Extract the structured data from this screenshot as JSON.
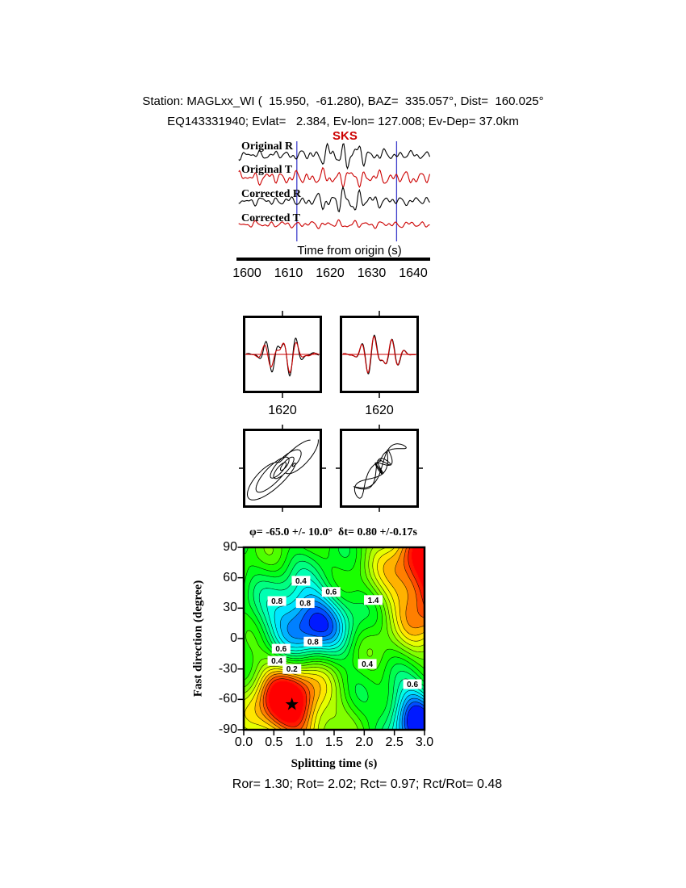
{
  "header": {
    "line1": "Station: MAGLxx_WI (  15.950,  -61.280), BAZ=  335.057°, Dist=  160.025°",
    "line2": "EQ143331940; Evlat=   2.384, Ev-lon= 127.008; Ev-Dep= 37.0km"
  },
  "chart_data": [
    {
      "id": "waveform-panel",
      "type": "line",
      "xlabel": "Time from origin (s)",
      "xlim": [
        1598,
        1644
      ],
      "xticks": [
        1600,
        1610,
        1620,
        1630,
        1640
      ],
      "phase_label": "SKS",
      "phase_time": 1624,
      "window_s": [
        1612,
        1636
      ],
      "window_color": "#4040cc",
      "traces": [
        {
          "name": "Original R",
          "color": "#000000",
          "base_amp": 4.5,
          "burst_amp": 11
        },
        {
          "name": "Original T",
          "color": "#cc0000",
          "base_amp": 7,
          "burst_amp": 3
        },
        {
          "name": "Corrected R",
          "color": "#000000",
          "base_amp": 4.5,
          "burst_amp": 10
        },
        {
          "name": "Corrected T",
          "color": "#cc0000",
          "base_amp": 3.5,
          "burst_amp": 1
        }
      ]
    },
    {
      "id": "window-seismograms",
      "type": "line",
      "panels": [
        {
          "label": "1620",
          "series": [
            "R",
            "T"
          ],
          "colors": [
            "#000000",
            "#cc0000"
          ],
          "match": 0.75
        },
        {
          "label": "1620",
          "series": [
            "R",
            "T"
          ],
          "colors": [
            "#000000",
            "#cc0000"
          ],
          "match": 0.95
        }
      ]
    },
    {
      "id": "particle-motion",
      "type": "scatter",
      "panels": [
        {
          "name": "original",
          "shape": "elliptical"
        },
        {
          "name": "corrected",
          "shape": "linear-diagonal"
        }
      ]
    },
    {
      "id": "error-surface",
      "type": "heatmap",
      "title": "φ= -65.0 +/- 10.0°  δt= 0.80 +/-0.17s",
      "xlabel": "Splitting time (s)",
      "ylabel": "Fast direction (degree)",
      "xlim": [
        0,
        3
      ],
      "ylim": [
        -90,
        90
      ],
      "xticks": [
        "0.0",
        "0.5",
        "1.0",
        "1.5",
        "2.0",
        "2.5",
        "3.0"
      ],
      "yticks": [
        "90",
        "60",
        "30",
        "0",
        "-30",
        "-60",
        "-90"
      ],
      "best_fit": {
        "fast_direction_deg": -65.0,
        "fast_direction_err_deg": 10.0,
        "delay_s": 0.8,
        "delay_err_s": 0.17
      },
      "star": {
        "x": 0.8,
        "y": -65
      },
      "base_level": 0.52,
      "field_blobs": [
        {
          "x": 0.75,
          "y": -63,
          "sx": 0.45,
          "sy": 30,
          "v": 0.6
        },
        {
          "x": 1.05,
          "y": 16,
          "sx": 0.48,
          "sy": 27,
          "v": -0.52
        },
        {
          "x": 2.85,
          "y": -80,
          "sx": 0.32,
          "sy": 24,
          "v": -0.55
        },
        {
          "x": 3.3,
          "y": 45,
          "sx": 0.6,
          "sy": 38,
          "v": 0.5
        },
        {
          "x": 3.1,
          "y": 88,
          "sx": 0.55,
          "sy": 30,
          "v": 0.28
        }
      ],
      "contour_labels": [
        {
          "x": 0.95,
          "y": 57,
          "text": "0.4"
        },
        {
          "x": 1.45,
          "y": 46,
          "text": "0.6"
        },
        {
          "x": 0.55,
          "y": 37,
          "text": "0.8"
        },
        {
          "x": 1.02,
          "y": 35,
          "text": "0.8"
        },
        {
          "x": 2.15,
          "y": 38,
          "text": "1.4"
        },
        {
          "x": 1.15,
          "y": -3,
          "text": "0.8"
        },
        {
          "x": 0.62,
          "y": -10,
          "text": "0.6"
        },
        {
          "x": 0.55,
          "y": -22,
          "text": "0.4"
        },
        {
          "x": 0.8,
          "y": -30,
          "text": "0.2"
        },
        {
          "x": 2.05,
          "y": -25,
          "text": "0.4"
        },
        {
          "x": 2.8,
          "y": -45,
          "text": "0.6"
        }
      ]
    }
  ],
  "footer": {
    "stats": "Ror= 1.30; Rot= 2.02; Rct= 0.97; Rct/Rot= 0.48"
  }
}
